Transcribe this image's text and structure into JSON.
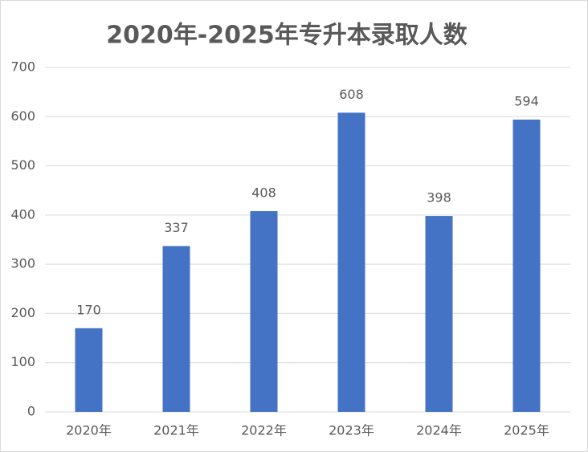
{
  "chart_data": {
    "type": "bar",
    "title": "2020年-2025年专升本录取人数",
    "categories": [
      "2020年",
      "2021年",
      "2022年",
      "2023年",
      "2024年",
      "2025年"
    ],
    "values": [
      170,
      337,
      408,
      608,
      398,
      594
    ],
    "color": "#4472c4",
    "ylim": [
      0,
      700
    ],
    "yticks": [
      0,
      100,
      200,
      300,
      400,
      500,
      600,
      700
    ],
    "grid": true
  }
}
